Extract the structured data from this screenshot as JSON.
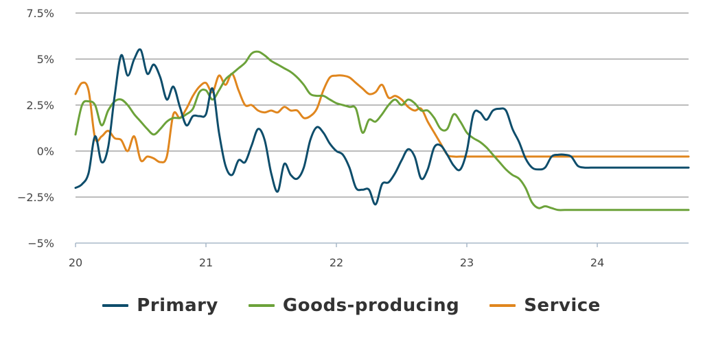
{
  "chart_data": {
    "type": "line",
    "title": "",
    "xlabel": "",
    "ylabel": "",
    "xlim": [
      20.0,
      24.7
    ],
    "ylim": [
      -5,
      7.5
    ],
    "yticks": [
      {
        "value": 7.5,
        "label": "7.5%"
      },
      {
        "value": 5,
        "label": "5%"
      },
      {
        "value": 2.5,
        "label": "2.5%"
      },
      {
        "value": 0,
        "label": "0%"
      },
      {
        "value": -2.5,
        "label": "−2.5%"
      },
      {
        "value": -5,
        "label": "−5%"
      }
    ],
    "xticks": [
      {
        "value": 20,
        "label": "20"
      },
      {
        "value": 21,
        "label": "21"
      },
      {
        "value": 22,
        "label": "22"
      },
      {
        "value": 23,
        "label": "23"
      },
      {
        "value": 24,
        "label": "24"
      }
    ],
    "grid": true,
    "legend_position": "bottom",
    "series": [
      {
        "name": "Primary",
        "color": "#0e4d6b",
        "x": [
          20.0,
          20.05,
          20.1,
          20.15,
          20.2,
          20.25,
          20.3,
          20.35,
          20.4,
          20.45,
          20.5,
          20.55,
          20.6,
          20.65,
          20.7,
          20.75,
          20.8,
          20.85,
          20.9,
          20.95,
          21.0,
          21.05,
          21.1,
          21.15,
          21.2,
          21.25,
          21.3,
          21.35,
          21.4,
          21.45,
          21.5,
          21.55,
          21.6,
          21.65,
          21.7,
          21.75,
          21.8,
          21.85,
          21.9,
          21.95,
          22.0,
          22.05,
          22.1,
          22.15,
          22.2,
          22.25,
          22.3,
          22.35,
          22.4,
          22.45,
          22.5,
          22.55,
          22.6,
          22.65,
          22.7,
          22.75,
          22.8,
          22.85,
          22.9,
          22.95,
          23.0,
          23.05,
          23.1,
          23.15,
          23.2,
          23.25,
          23.3,
          23.35,
          23.4,
          23.45,
          23.5,
          23.55,
          23.6,
          23.65,
          23.7,
          23.75,
          23.8,
          23.85,
          23.9,
          23.95,
          24.0,
          24.05,
          24.1,
          24.15,
          24.2,
          24.25,
          24.3,
          24.35,
          24.4,
          24.45,
          24.5,
          24.55,
          24.6,
          24.65,
          24.7
        ],
        "values": [
          -2.0,
          -1.8,
          -1.2,
          0.8,
          -0.6,
          0.2,
          3.0,
          5.2,
          4.1,
          5.0,
          5.5,
          4.2,
          4.7,
          4.0,
          2.8,
          3.5,
          2.4,
          1.4,
          1.9,
          1.9,
          2.0,
          3.4,
          1.0,
          -0.8,
          -1.3,
          -0.5,
          -0.6,
          0.3,
          1.2,
          0.6,
          -1.2,
          -2.2,
          -0.7,
          -1.3,
          -1.5,
          -0.9,
          0.6,
          1.3,
          1.0,
          0.4,
          0.0,
          -0.2,
          -0.9,
          -2.0,
          -2.1,
          -2.1,
          -2.9,
          -1.8,
          -1.7,
          -1.2,
          -0.5,
          0.1,
          -0.3,
          -1.5,
          -1.0,
          0.2,
          0.3,
          -0.2,
          -0.8,
          -1.0,
          0.0,
          2.0,
          2.1,
          1.7,
          2.2,
          2.3,
          2.2,
          1.2,
          0.5,
          -0.4,
          -0.9,
          -1.0,
          -0.9,
          -0.3,
          -0.2,
          -0.2,
          -0.3,
          -0.8,
          -0.9,
          -0.9,
          -0.9,
          -0.9,
          -0.9,
          -0.9,
          -0.9,
          -0.9,
          -0.9,
          -0.9,
          -0.9,
          -0.9,
          -0.9,
          -0.9,
          -0.9,
          -0.9,
          -0.9
        ]
      },
      {
        "name": "Goods-producing",
        "color": "#6ca23a",
        "x": [
          20.0,
          20.05,
          20.1,
          20.15,
          20.2,
          20.25,
          20.3,
          20.35,
          20.4,
          20.45,
          20.5,
          20.55,
          20.6,
          20.65,
          20.7,
          20.75,
          20.8,
          20.85,
          20.9,
          20.95,
          21.0,
          21.05,
          21.1,
          21.15,
          21.2,
          21.25,
          21.3,
          21.35,
          21.4,
          21.45,
          21.5,
          21.55,
          21.6,
          21.65,
          21.7,
          21.75,
          21.8,
          21.85,
          21.9,
          21.95,
          22.0,
          22.05,
          22.1,
          22.15,
          22.2,
          22.25,
          22.3,
          22.35,
          22.4,
          22.45,
          22.5,
          22.55,
          22.6,
          22.65,
          22.7,
          22.75,
          22.8,
          22.85,
          22.9,
          22.95,
          23.0,
          23.05,
          23.1,
          23.15,
          23.2,
          23.25,
          23.3,
          23.35,
          23.4,
          23.45,
          23.5,
          23.55,
          23.6,
          23.65,
          23.7,
          23.75,
          23.8,
          23.85,
          23.9,
          23.95,
          24.0,
          24.05,
          24.1,
          24.15,
          24.2,
          24.25,
          24.3,
          24.35,
          24.4,
          24.45,
          24.5,
          24.55,
          24.6,
          24.65,
          24.7
        ],
        "values": [
          0.9,
          2.5,
          2.7,
          2.5,
          1.4,
          2.2,
          2.7,
          2.8,
          2.5,
          2.0,
          1.6,
          1.2,
          0.9,
          1.2,
          1.6,
          1.8,
          1.8,
          2.0,
          2.3,
          3.2,
          3.3,
          2.8,
          3.3,
          3.9,
          4.2,
          4.5,
          4.8,
          5.3,
          5.4,
          5.2,
          4.9,
          4.7,
          4.5,
          4.3,
          4.0,
          3.6,
          3.1,
          3.0,
          3.0,
          2.8,
          2.6,
          2.5,
          2.4,
          2.3,
          1.0,
          1.7,
          1.6,
          2.0,
          2.5,
          2.8,
          2.5,
          2.8,
          2.6,
          2.2,
          2.2,
          1.8,
          1.2,
          1.2,
          2.0,
          1.6,
          1.0,
          0.7,
          0.5,
          0.2,
          -0.2,
          -0.6,
          -1.0,
          -1.3,
          -1.5,
          -2.0,
          -2.8,
          -3.1,
          -3.0,
          -3.1,
          -3.2,
          -3.2,
          -3.2,
          -3.2,
          -3.2,
          -3.2,
          -3.2,
          -3.2,
          -3.2,
          -3.2,
          -3.2,
          -3.2,
          -3.2,
          -3.2,
          -3.2,
          -3.2,
          -3.2,
          -3.2,
          -3.2,
          -3.2,
          -3.2
        ]
      },
      {
        "name": "Service",
        "color": "#e0861e",
        "x": [
          20.0,
          20.05,
          20.1,
          20.15,
          20.2,
          20.25,
          20.3,
          20.35,
          20.4,
          20.45,
          20.5,
          20.55,
          20.6,
          20.65,
          20.7,
          20.75,
          20.8,
          20.85,
          20.9,
          20.95,
          21.0,
          21.05,
          21.1,
          21.15,
          21.2,
          21.25,
          21.3,
          21.35,
          21.4,
          21.45,
          21.5,
          21.55,
          21.6,
          21.65,
          21.7,
          21.75,
          21.8,
          21.85,
          21.9,
          21.95,
          22.0,
          22.05,
          22.1,
          22.15,
          22.2,
          22.25,
          22.3,
          22.35,
          22.4,
          22.45,
          22.5,
          22.55,
          22.6,
          22.65,
          22.7,
          22.75,
          22.8,
          22.85,
          22.9,
          22.95,
          23.0,
          23.05,
          23.1,
          23.15,
          23.2,
          23.25,
          23.3,
          23.35,
          23.4,
          23.45,
          23.5,
          23.55,
          23.6,
          23.65,
          23.7,
          23.75,
          23.8,
          23.85,
          23.9,
          23.95,
          24.0,
          24.05,
          24.1,
          24.15,
          24.2,
          24.25,
          24.3,
          24.35,
          24.4,
          24.45,
          24.5,
          24.55,
          24.6,
          24.65,
          24.7
        ],
        "values": [
          3.1,
          3.7,
          3.3,
          0.7,
          0.8,
          1.1,
          0.7,
          0.6,
          0.0,
          0.8,
          -0.5,
          -0.3,
          -0.4,
          -0.6,
          -0.3,
          2.0,
          1.8,
          2.3,
          3.0,
          3.5,
          3.7,
          3.2,
          4.1,
          3.6,
          4.2,
          3.3,
          2.5,
          2.5,
          2.2,
          2.1,
          2.2,
          2.1,
          2.4,
          2.2,
          2.2,
          1.8,
          1.9,
          2.3,
          3.3,
          4.0,
          4.1,
          4.1,
          4.0,
          3.7,
          3.4,
          3.1,
          3.2,
          3.6,
          2.9,
          3.0,
          2.8,
          2.4,
          2.2,
          2.3,
          1.6,
          1.0,
          0.4,
          -0.2,
          -0.3,
          -0.3,
          -0.3,
          -0.3,
          -0.3,
          -0.3,
          -0.3,
          -0.3,
          -0.3,
          -0.3,
          -0.3,
          -0.3,
          -0.3,
          -0.3,
          -0.3,
          -0.3,
          -0.3,
          -0.3,
          -0.3,
          -0.3,
          -0.3,
          -0.3,
          -0.3,
          -0.3,
          -0.3,
          -0.3,
          -0.3,
          -0.3,
          -0.3,
          -0.3,
          -0.3,
          -0.3,
          -0.3,
          -0.3,
          -0.3,
          -0.3,
          -0.3
        ]
      }
    ]
  }
}
